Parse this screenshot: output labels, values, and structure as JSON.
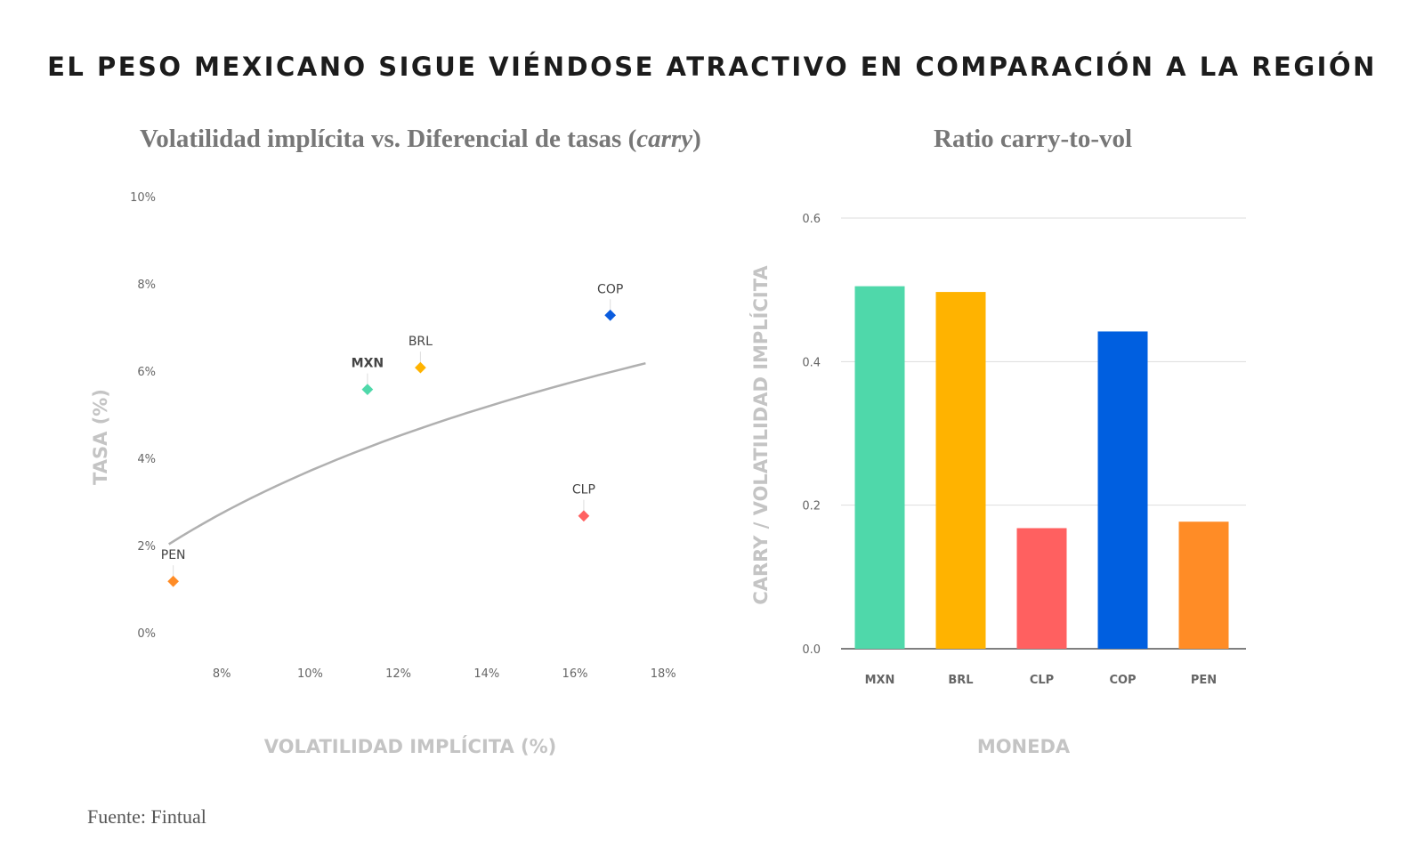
{
  "title": "EL PESO MEXICANO SIGUE VIÉNDOSE ATRACTIVO EN COMPARACIÓN A LA REGIÓN",
  "source": "Fuente: Fintual",
  "scatter": {
    "title_main": "Volatilidad implícita vs. Diferencial de tasas (",
    "title_italic": "carry",
    "title_end": ")"
  },
  "bar": {
    "title": "Ratio carry-to-vol"
  },
  "chart_data": [
    {
      "type": "scatter",
      "title": "Volatilidad implícita vs. Diferencial de tasas (carry)",
      "xlabel": "VOLATILIDAD IMPLÍCITA (%)",
      "ylabel": "TASA (%)",
      "xlim": [
        6,
        18.5
      ],
      "ylim": [
        0,
        10
      ],
      "x_ticks": [
        "8%",
        "10%",
        "12%",
        "14%",
        "16%",
        "18%"
      ],
      "y_ticks": [
        "0%",
        "2%",
        "4%",
        "6%",
        "8%",
        "10%"
      ],
      "points": [
        {
          "label": "MXN",
          "x": 11.3,
          "y": 5.6,
          "color": "#4fd8aa",
          "bold": true
        },
        {
          "label": "BRL",
          "x": 12.5,
          "y": 6.1,
          "color": "#ffb300",
          "bold": false
        },
        {
          "label": "CLP",
          "x": 16.2,
          "y": 2.7,
          "color": "#ff6060",
          "bold": false
        },
        {
          "label": "COP",
          "x": 16.8,
          "y": 7.3,
          "color": "#0a5cde",
          "bold": false
        },
        {
          "label": "PEN",
          "x": 6.9,
          "y": 1.2,
          "color": "#ff8c26",
          "bold": false
        }
      ],
      "trendline": {
        "x": [
          6.8,
          17.6
        ],
        "y": [
          2.05,
          6.2
        ]
      },
      "grid": false
    },
    {
      "type": "bar",
      "title": "Ratio carry-to-vol",
      "xlabel": "MONEDA",
      "ylabel": "CARRY / VOLATILIDAD IMPLÍCITA",
      "ylim": [
        0,
        0.6
      ],
      "y_ticks": [
        "0.0",
        "0.2",
        "0.4",
        "0.6"
      ],
      "categories": [
        "MXN",
        "BRL",
        "CLP",
        "COP",
        "PEN"
      ],
      "values": [
        0.505,
        0.497,
        0.168,
        0.442,
        0.177
      ],
      "colors": [
        "#4fd8aa",
        "#ffb300",
        "#ff6060",
        "#005fe0",
        "#ff8c26"
      ],
      "grid": true
    }
  ]
}
